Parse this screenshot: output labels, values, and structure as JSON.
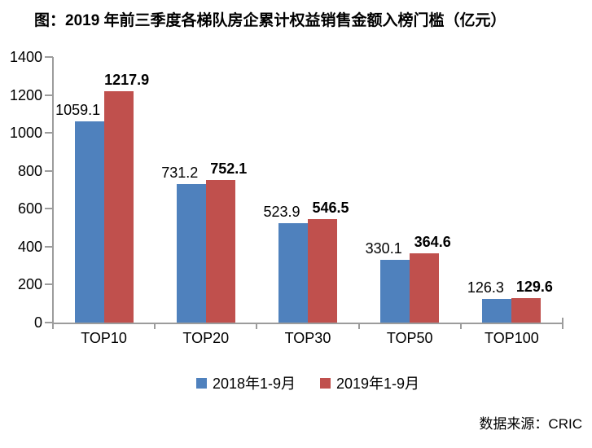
{
  "source_note": "数据来源：CRIC",
  "chart_data": {
    "type": "bar",
    "title": "图：2019 年前三季度各梯队房企累计权益销售金额入榜门槛（亿元）",
    "categories": [
      "TOP10",
      "TOP20",
      "TOP30",
      "TOP50",
      "TOP100"
    ],
    "series": [
      {
        "name": "2018年1-9月",
        "color": "#4F81BD",
        "values": [
          1059.1,
          731.2,
          523.9,
          330.1,
          126.3
        ],
        "labels_bold": false
      },
      {
        "name": "2019年1-9月",
        "color": "#C0504D",
        "values": [
          1217.9,
          752.1,
          546.5,
          364.6,
          129.6
        ],
        "labels_bold": true
      }
    ],
    "ylim": [
      0,
      1400
    ],
    "ytick_step": 200,
    "ytick_labels": [
      "0",
      "200",
      "400",
      "600",
      "800",
      "1000",
      "1200",
      "1400"
    ],
    "axis_color": "#9C9C9C",
    "grid": false,
    "legend_position": "bottom",
    "value_labels_shown": true
  }
}
